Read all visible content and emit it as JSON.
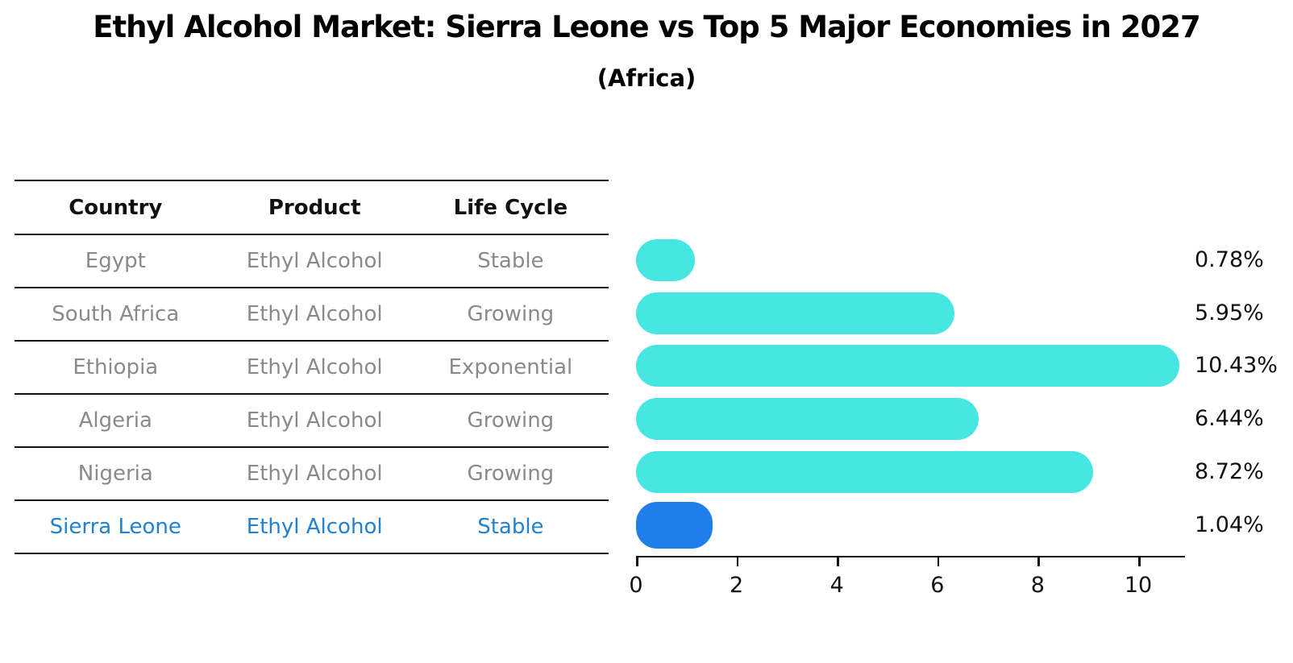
{
  "header": {
    "title": "Ethyl Alcohol Market: Sierra Leone vs Top 5 Major Economies in 2027",
    "subtitle": "(Africa)"
  },
  "table": {
    "headers": [
      "Country",
      "Product",
      "Life Cycle"
    ]
  },
  "chart_data": {
    "type": "bar",
    "orientation": "horizontal",
    "title": "Ethyl Alcohol Market: Sierra Leone vs Top 5 Major Economies in 2027",
    "subtitle": "(Africa)",
    "categories": [
      "Egypt",
      "South Africa",
      "Ethiopia",
      "Algeria",
      "Nigeria",
      "Sierra Leone"
    ],
    "values": [
      0.78,
      5.95,
      10.43,
      6.44,
      8.72,
      1.04
    ],
    "rows": [
      {
        "country": "Egypt",
        "product": "Ethyl Alcohol",
        "life_cycle": "Stable",
        "value": 0.78,
        "label": "0.78%",
        "highlighted": false
      },
      {
        "country": "South Africa",
        "product": "Ethyl Alcohol",
        "life_cycle": "Growing",
        "value": 5.95,
        "label": "5.95%",
        "highlighted": false
      },
      {
        "country": "Ethiopia",
        "product": "Ethyl Alcohol",
        "life_cycle": "Exponential",
        "value": 10.43,
        "label": "10.43%",
        "highlighted": false
      },
      {
        "country": "Algeria",
        "product": "Ethyl Alcohol",
        "life_cycle": "Growing",
        "value": 6.44,
        "label": "6.44%",
        "highlighted": false
      },
      {
        "country": "Nigeria",
        "product": "Ethyl Alcohol",
        "life_cycle": "Growing",
        "value": 8.72,
        "label": "8.72%",
        "highlighted": false
      },
      {
        "country": "Sierra Leone",
        "product": "Ethyl Alcohol",
        "life_cycle": "Stable",
        "value": 1.04,
        "label": "1.04%",
        "highlighted": true
      }
    ],
    "x_ticks": [
      0,
      2,
      4,
      6,
      8,
      10
    ],
    "xlim": [
      0,
      10.93
    ],
    "xlabel": "",
    "ylabel": "",
    "grid": false,
    "legend": "none",
    "colors": {
      "bar": "#48E6E2",
      "highlight_bar": "#1E7FEB",
      "highlight_text": "#2182CE",
      "row_text": "#8a8a8a",
      "header_text": "#111111",
      "axis": "#111111"
    }
  }
}
